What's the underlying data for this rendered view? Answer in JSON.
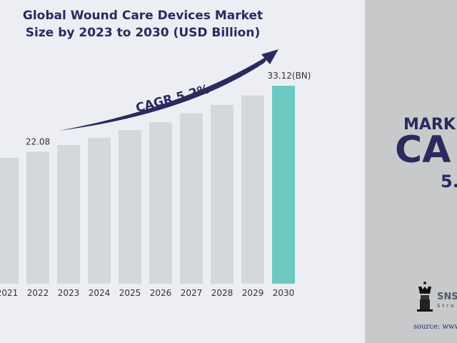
{
  "chart_data": {
    "type": "bar",
    "title": "Global Wound Care Devices Market Size by 2023 to 2030 (USD Billion)",
    "title_lines": [
      "Global Wound Care Devices Market",
      "Size by 2023 to 2030 (USD Billion)"
    ],
    "categories": [
      "2021",
      "2022",
      "2023",
      "2024",
      "2025",
      "2026",
      "2027",
      "2028",
      "2029",
      "2030"
    ],
    "values": [
      21.05,
      22.08,
      23.2,
      24.4,
      25.7,
      27.0,
      28.5,
      29.9,
      31.5,
      33.12
    ],
    "data_labels": {
      "2022": "22.08",
      "2030": "33.12(BN)"
    },
    "annotation": "CAGR 5.2%",
    "ylim": [
      0,
      33.12
    ],
    "grid": false,
    "colors": {
      "bar": "#d3d8dd",
      "highlight": "#6cc9c2",
      "accent": "#2b2a5e",
      "background": "#eceef3"
    }
  },
  "side_panel": {
    "line1": "MARK",
    "line2": "CA",
    "line3": "5.",
    "brand": "SNS",
    "brand_sub": "Stra",
    "source": "source: www"
  }
}
